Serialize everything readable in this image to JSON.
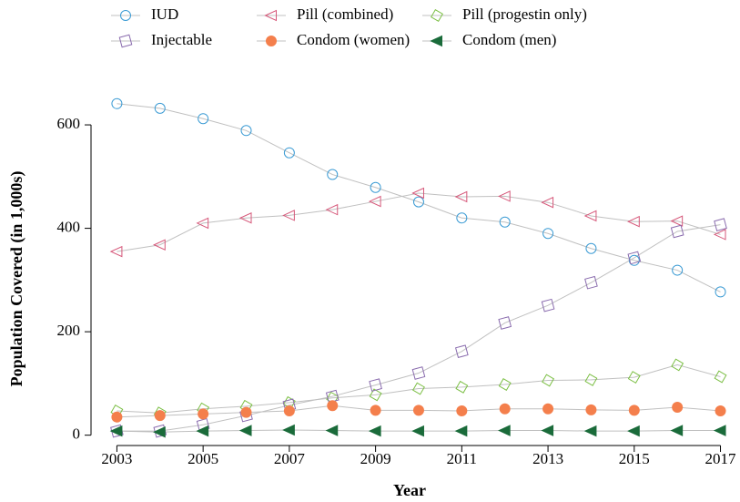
{
  "chart_data": {
    "type": "line",
    "x_label": "Year",
    "y_label": "Population Covered (in 1,000s)",
    "x": [
      2003,
      2004,
      2005,
      2006,
      2007,
      2008,
      2009,
      2010,
      2011,
      2012,
      2013,
      2014,
      2015,
      2016,
      2017
    ],
    "xlim": [
      2002.4,
      2017.2
    ],
    "xticks": [
      2003,
      2005,
      2007,
      2009,
      2011,
      2013,
      2015,
      2017
    ],
    "ylim": [
      -20,
      660
    ],
    "yticks": [
      0,
      200,
      400,
      600
    ],
    "line_color": "#c0c0c0",
    "series": [
      {
        "name": "IUD",
        "color": "#3b9bd4",
        "marker": "circle",
        "filled": false,
        "values": [
          641,
          632,
          612,
          589,
          546,
          504,
          479,
          451,
          420,
          412,
          390,
          361,
          338,
          319,
          277
        ]
      },
      {
        "name": "Pill (combined)",
        "color": "#d6587a",
        "marker": "triangle-left",
        "filled": false,
        "values": [
          355,
          368,
          410,
          420,
          425,
          436,
          452,
          468,
          461,
          462,
          450,
          424,
          413,
          414,
          388
        ]
      },
      {
        "name": "Pill (progestin only)",
        "color": "#7cbf45",
        "marker": "diamond",
        "filled": false,
        "values": [
          47,
          43,
          51,
          56,
          63,
          72,
          78,
          90,
          93,
          98,
          106,
          107,
          112,
          136,
          113
        ]
      },
      {
        "name": "Injectable",
        "color": "#8a6cae",
        "marker": "square",
        "filled": false,
        "values": [
          8,
          8,
          20,
          38,
          58,
          75,
          97,
          120,
          162,
          217,
          251,
          295,
          343,
          394,
          407
        ]
      },
      {
        "name": "Condom (women)",
        "color": "#f47f4c",
        "marker": "circle",
        "filled": true,
        "values": [
          35,
          38,
          41,
          44,
          47,
          57,
          48,
          48,
          47,
          51,
          51,
          49,
          48,
          54,
          47
        ]
      },
      {
        "name": "Condom (men)",
        "color": "#1a6b3a",
        "marker": "triangle-left",
        "filled": true,
        "values": [
          8,
          6,
          8,
          9,
          10,
          9,
          8,
          8,
          8,
          9,
          9,
          8,
          8,
          9,
          9
        ]
      }
    ]
  }
}
